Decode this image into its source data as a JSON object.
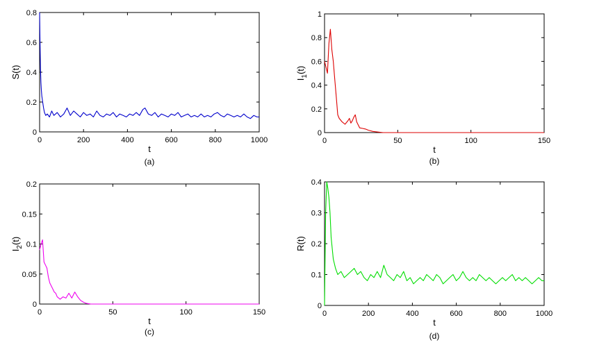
{
  "chart_data": [
    {
      "type": "line",
      "panel": "(a)",
      "xlabel": "t",
      "ylabel": "S(t)",
      "xlim": [
        0,
        1000
      ],
      "ylim": [
        0,
        0.8
      ],
      "xticks": [
        "0",
        "200",
        "400",
        "600",
        "800",
        "1000"
      ],
      "yticks": [
        "0",
        "0.2",
        "0.4",
        "0.6",
        "0.8"
      ],
      "color": "#0000cc",
      "series": [
        {
          "x": [
            0,
            2,
            4,
            6,
            8,
            10,
            14,
            18,
            22,
            28,
            35,
            45,
            55,
            65,
            80,
            95,
            110,
            125,
            140,
            155,
            170,
            185,
            200,
            215,
            230,
            245,
            260,
            275,
            290,
            305,
            320,
            335,
            350,
            365,
            380,
            395,
            410,
            425,
            440,
            455,
            470,
            480,
            495,
            510,
            525,
            540,
            555,
            570,
            585,
            600,
            615,
            630,
            645,
            660,
            675,
            690,
            705,
            720,
            735,
            750,
            765,
            780,
            795,
            810,
            825,
            840,
            855,
            870,
            885,
            900,
            915,
            930,
            945,
            960,
            975,
            990,
            1000
          ],
          "y": [
            0.8,
            0.6,
            0.42,
            0.33,
            0.28,
            0.24,
            0.2,
            0.16,
            0.13,
            0.11,
            0.12,
            0.1,
            0.14,
            0.11,
            0.13,
            0.1,
            0.12,
            0.16,
            0.11,
            0.14,
            0.12,
            0.1,
            0.13,
            0.11,
            0.12,
            0.1,
            0.14,
            0.11,
            0.1,
            0.12,
            0.11,
            0.13,
            0.1,
            0.12,
            0.11,
            0.1,
            0.12,
            0.11,
            0.13,
            0.11,
            0.15,
            0.16,
            0.12,
            0.11,
            0.13,
            0.1,
            0.12,
            0.11,
            0.1,
            0.12,
            0.11,
            0.13,
            0.1,
            0.11,
            0.12,
            0.1,
            0.11,
            0.1,
            0.12,
            0.1,
            0.11,
            0.1,
            0.12,
            0.13,
            0.11,
            0.1,
            0.12,
            0.11,
            0.1,
            0.11,
            0.1,
            0.12,
            0.1,
            0.09,
            0.11,
            0.1,
            0.1
          ]
        }
      ]
    },
    {
      "type": "line",
      "panel": "(b)",
      "xlabel": "t",
      "ylabel": "I1(t)",
      "xlim": [
        0,
        150
      ],
      "ylim": [
        0,
        1
      ],
      "xticks": [
        "0",
        "50",
        "100",
        "150"
      ],
      "yticks": [
        "0",
        "0.2",
        "0.4",
        "0.6",
        "0.8",
        "1"
      ],
      "color": "#dd0000",
      "series": [
        {
          "x": [
            0,
            1,
            2,
            3,
            4,
            5,
            6,
            7,
            8,
            9,
            10,
            12,
            14,
            16,
            17,
            18,
            19,
            20,
            21,
            22,
            24,
            26,
            28,
            30,
            33,
            36,
            40,
            50,
            75,
            100,
            125,
            150
          ],
          "y": [
            0.6,
            0.55,
            0.5,
            0.75,
            0.87,
            0.7,
            0.6,
            0.45,
            0.3,
            0.15,
            0.12,
            0.09,
            0.07,
            0.1,
            0.12,
            0.08,
            0.1,
            0.13,
            0.15,
            0.09,
            0.04,
            0.035,
            0.03,
            0.02,
            0.01,
            0.005,
            0.0,
            0.0,
            0.0,
            0.0,
            0.0,
            0.0
          ]
        }
      ]
    },
    {
      "type": "line",
      "panel": "(c)",
      "xlabel": "t",
      "ylabel": "I2(t)",
      "xlim": [
        0,
        150
      ],
      "ylim": [
        0,
        0.2
      ],
      "xticks": [
        "0",
        "50",
        "100",
        "150"
      ],
      "yticks": [
        "0",
        "0.05",
        "0.1",
        "0.15",
        "0.2"
      ],
      "color": "#ee00ee",
      "series": [
        {
          "x": [
            0,
            1,
            2,
            3,
            4,
            5,
            6,
            7,
            8,
            9,
            10,
            11,
            12,
            14,
            16,
            18,
            20,
            22,
            24,
            26,
            28,
            30,
            32,
            35,
            40,
            50,
            75,
            100,
            125,
            150
          ],
          "y": [
            0.09,
            0.1,
            0.107,
            0.07,
            0.065,
            0.06,
            0.045,
            0.035,
            0.03,
            0.025,
            0.02,
            0.018,
            0.012,
            0.008,
            0.012,
            0.01,
            0.018,
            0.01,
            0.02,
            0.012,
            0.006,
            0.003,
            0.001,
            0.0,
            0.0,
            0.0,
            0.0,
            0.0,
            0.0,
            0.0
          ]
        }
      ]
    },
    {
      "type": "line",
      "panel": "(d)",
      "xlabel": "t",
      "ylabel": "R(t)",
      "xlim": [
        0,
        1000
      ],
      "ylim": [
        0,
        0.4
      ],
      "xticks": [
        "0",
        "200",
        "400",
        "600",
        "800",
        "1000"
      ],
      "yticks": [
        "0",
        "0.1",
        "0.2",
        "0.3",
        "0.4"
      ],
      "color": "#00dd00",
      "series": [
        {
          "x": [
            0,
            5,
            10,
            15,
            20,
            25,
            30,
            40,
            50,
            60,
            75,
            90,
            105,
            120,
            135,
            150,
            165,
            180,
            195,
            210,
            225,
            240,
            255,
            270,
            285,
            300,
            315,
            330,
            345,
            360,
            375,
            390,
            405,
            420,
            435,
            450,
            465,
            480,
            495,
            510,
            525,
            540,
            555,
            570,
            585,
            600,
            615,
            630,
            645,
            660,
            675,
            690,
            705,
            720,
            735,
            750,
            765,
            780,
            795,
            810,
            825,
            840,
            855,
            870,
            885,
            900,
            915,
            930,
            945,
            960,
            975,
            990,
            1000
          ],
          "y": [
            0.0,
            0.3,
            0.4,
            0.38,
            0.35,
            0.3,
            0.22,
            0.15,
            0.12,
            0.1,
            0.11,
            0.09,
            0.1,
            0.11,
            0.12,
            0.1,
            0.11,
            0.09,
            0.08,
            0.1,
            0.09,
            0.11,
            0.09,
            0.13,
            0.1,
            0.09,
            0.08,
            0.1,
            0.09,
            0.11,
            0.08,
            0.09,
            0.07,
            0.08,
            0.09,
            0.08,
            0.1,
            0.09,
            0.08,
            0.1,
            0.09,
            0.07,
            0.08,
            0.09,
            0.1,
            0.08,
            0.09,
            0.11,
            0.09,
            0.08,
            0.09,
            0.08,
            0.1,
            0.09,
            0.08,
            0.09,
            0.08,
            0.07,
            0.08,
            0.09,
            0.08,
            0.09,
            0.1,
            0.08,
            0.09,
            0.08,
            0.09,
            0.08,
            0.07,
            0.08,
            0.09,
            0.08,
            0.08
          ]
        }
      ]
    }
  ]
}
